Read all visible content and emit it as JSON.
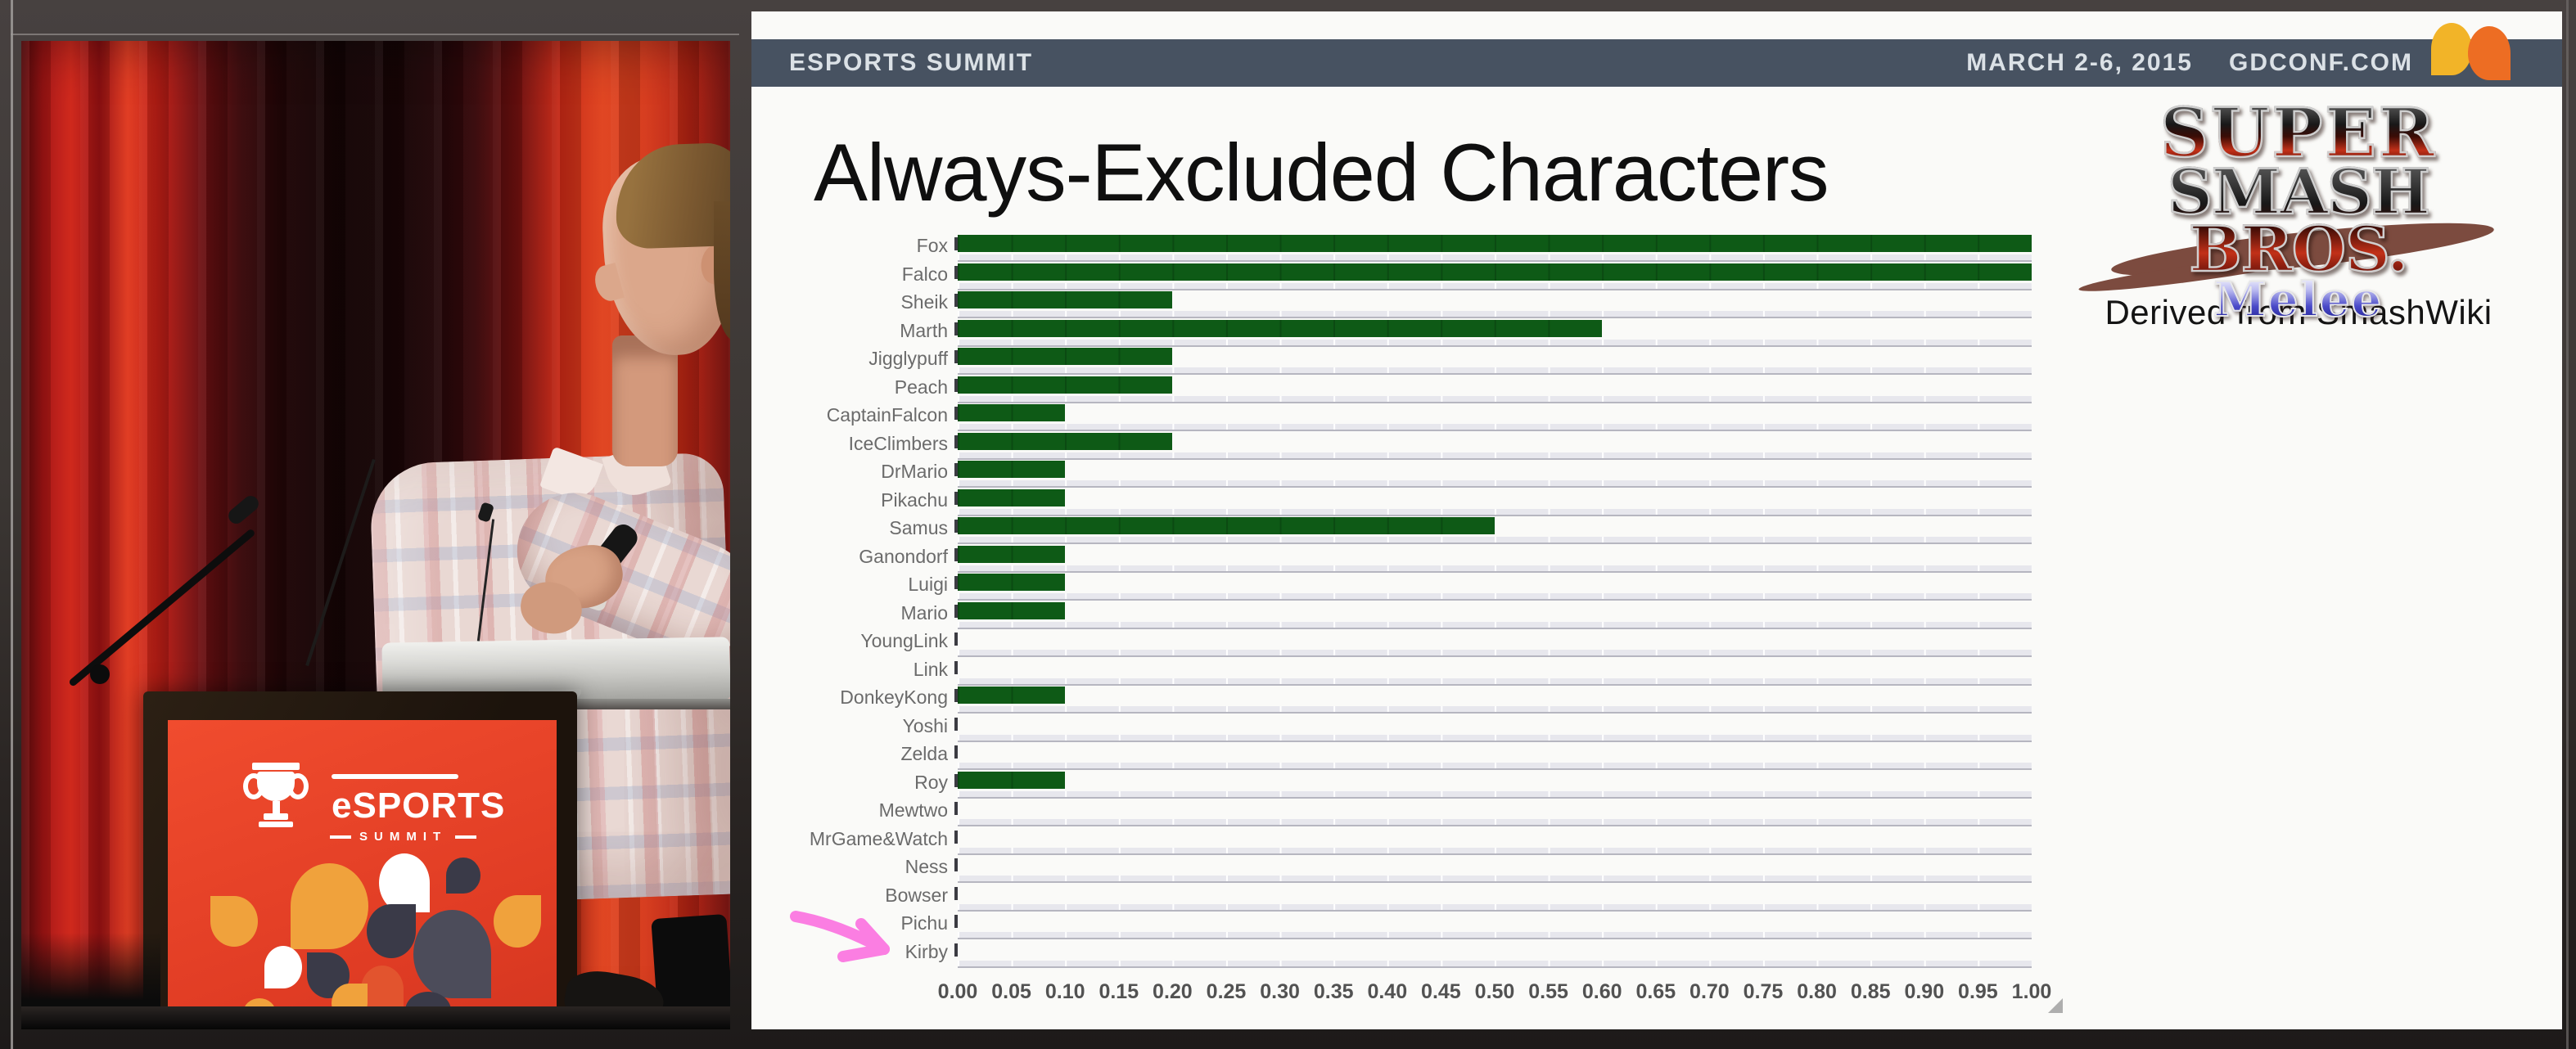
{
  "photo": {
    "podium": {
      "brand": "eSPORTS",
      "sub_brand": "SUMMIT"
    }
  },
  "slide": {
    "header": {
      "left_title": "ESPORTS SUMMIT",
      "date": "MARCH 2-6, 2015",
      "site": "GDCONF.COM"
    },
    "title": "Always-Excluded Characters",
    "logo": {
      "line1": "SUPER",
      "line2": "SMASH BROS.",
      "line3": "Melee"
    },
    "attribution": "Derived from SmashWiki"
  },
  "colors": {
    "bar_green": "#0e5a16",
    "stripe_gray": "#e7e7ed",
    "topbar_slate": "#475261",
    "slide_bg": "#fafaf8",
    "gdc_yellow": "#f2b428",
    "gdc_orange": "#ed6d23",
    "arrow_pink": "#fb7ee2",
    "podium_red": "#e8452c"
  },
  "chart_data": {
    "type": "bar",
    "orientation": "horizontal",
    "title": "Always-Excluded Characters",
    "xlabel": "",
    "ylabel": "",
    "categories": [
      "Fox",
      "Falco",
      "Sheik",
      "Marth",
      "Jigglypuff",
      "Peach",
      "CaptainFalcon",
      "IceClimbers",
      "DrMario",
      "Pikachu",
      "Samus",
      "Ganondorf",
      "Luigi",
      "Mario",
      "YoungLink",
      "Link",
      "DonkeyKong",
      "Yoshi",
      "Zelda",
      "Roy",
      "Mewtwo",
      "MrGame&Watch",
      "Ness",
      "Bowser",
      "Pichu",
      "Kirby"
    ],
    "values": [
      1.0,
      1.0,
      0.2,
      0.6,
      0.2,
      0.2,
      0.1,
      0.2,
      0.1,
      0.1,
      0.5,
      0.1,
      0.1,
      0.1,
      0,
      0,
      0.1,
      0,
      0,
      0.1,
      0,
      0,
      0,
      0,
      0,
      0
    ],
    "xlim": [
      0,
      1.0
    ],
    "x_ticks": [
      "0.00",
      "0.05",
      "0.10",
      "0.15",
      "0.20",
      "0.25",
      "0.30",
      "0.35",
      "0.40",
      "0.45",
      "0.50",
      "0.55",
      "0.60",
      "0.65",
      "0.70",
      "0.75",
      "0.80",
      "0.85",
      "0.90",
      "0.95",
      "1.00"
    ],
    "grid": "vertical white gridlines every 0.05 over gray row stripes",
    "legend": "none",
    "bar_color": "#0e5a16",
    "annotations": [
      {
        "type": "hand-drawn arrow",
        "color": "#fb7ee2",
        "points_to": "Kirby"
      }
    ]
  }
}
